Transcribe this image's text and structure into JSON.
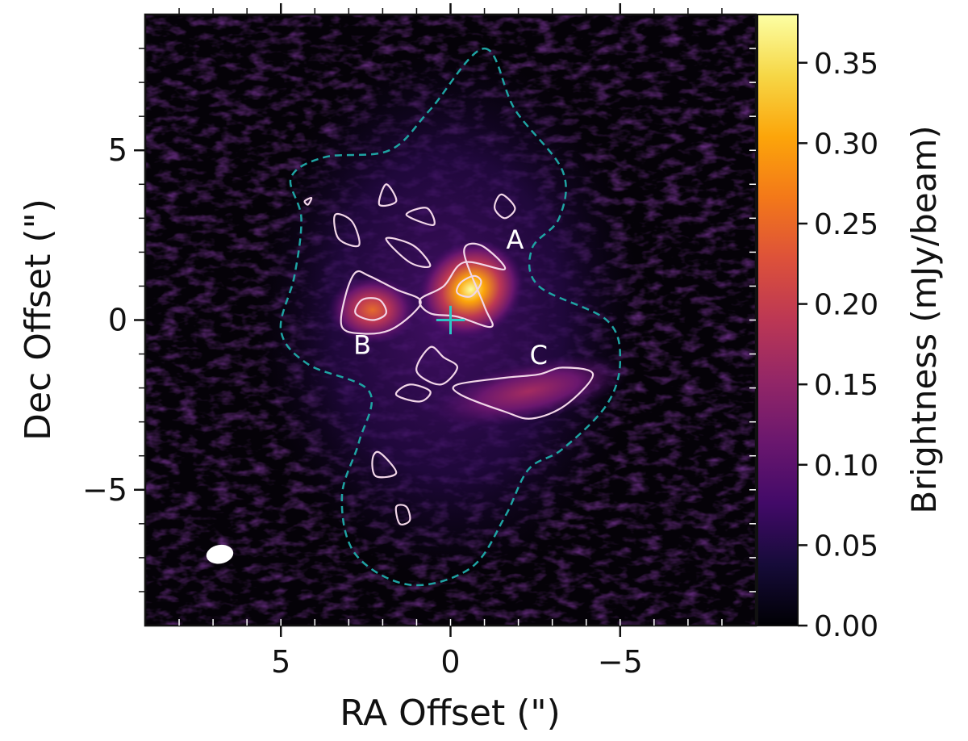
{
  "chart_data": {
    "type": "heatmap",
    "title": "",
    "xlabel": "RA Offset (\")",
    "ylabel": "Dec Offset (\")",
    "xlim": [
      9,
      -9
    ],
    "ylim": [
      -9,
      9
    ],
    "x_ticks": [
      {
        "value": 5,
        "label": "5"
      },
      {
        "value": 0,
        "label": "0"
      },
      {
        "value": -5,
        "label": "−5"
      }
    ],
    "y_ticks": [
      {
        "value": 5,
        "label": "5"
      },
      {
        "value": 0,
        "label": "0"
      },
      {
        "value": -5,
        "label": "−5"
      }
    ],
    "minor_tick_step": 1,
    "grid": false,
    "colormap": "inferno",
    "colorbar": {
      "label": "Brightness (mJy/beam)",
      "range": [
        0,
        0.38
      ],
      "ticks": [
        {
          "value": 0.0,
          "label": "0.00"
        },
        {
          "value": 0.05,
          "label": "0.05"
        },
        {
          "value": 0.1,
          "label": "0.10"
        },
        {
          "value": 0.15,
          "label": "0.15"
        },
        {
          "value": 0.2,
          "label": "0.20"
        },
        {
          "value": 0.25,
          "label": "0.25"
        },
        {
          "value": 0.3,
          "label": "0.30"
        },
        {
          "value": 0.35,
          "label": "0.35"
        }
      ]
    },
    "sources": [
      {
        "label": "A",
        "x": -0.6,
        "y": 0.9,
        "peak": 0.36,
        "label_x": -1.9,
        "label_y": 2.1
      },
      {
        "label": "B",
        "x": 2.3,
        "y": 0.3,
        "peak": 0.22,
        "label_x": 2.6,
        "label_y": -1.0
      },
      {
        "label": "C",
        "x": -2.3,
        "y": -2.1,
        "peak": 0.15,
        "label_x": -2.6,
        "label_y": -1.3
      }
    ],
    "phase_center": {
      "x": 0,
      "y": 0,
      "marker": "plus",
      "color": "#2cc6c6"
    },
    "outer_contour_color": "#1fa3a3",
    "inner_contour_color": "#f2d6e8",
    "beam": {
      "x": 6.8,
      "y": -6.9,
      "major": 0.8,
      "minor": 0.55,
      "color": "#ffffff"
    }
  }
}
